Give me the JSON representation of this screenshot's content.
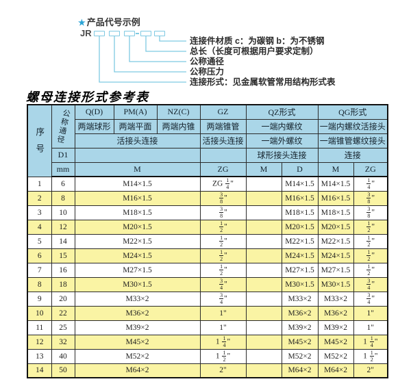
{
  "colors": {
    "accent_blue": "#7ec9e2",
    "star_blue": "#2aa4d6",
    "header_bg": "#aad6e8",
    "row_alt_bg": "#faf4a4",
    "border": "#2a2a2a"
  },
  "diagram": {
    "star": "★",
    "heading": "产品代号示例",
    "code_prefix": "JR",
    "labels": [
      "连接件材质  c：为碳钢  b：为不锈钢",
      "总长（长度可根据用户要求定制）",
      "公称通径",
      "公称压力",
      "连接形式：见金属软管常用结构形式表"
    ]
  },
  "table": {
    "title": "螺母连接形式参考表",
    "header": {
      "col_serial": "序号",
      "col_dn": "公称通径",
      "dn_sub": "D1",
      "dn_unit": "mm",
      "groups": [
        "Q(D)",
        "PM(A)",
        "NZ(C)",
        "GZ",
        "QZ形式",
        "QG形式"
      ],
      "row2": [
        "两端球形",
        "两端平面",
        "两端内锥",
        "两端锥管",
        "一端内螺纹",
        "一端内螺纹活接头"
      ],
      "row3": [
        "活接头连接",
        "活接头连接",
        "一端外螺纹",
        "一端锥管螺纹接头"
      ],
      "row4": [
        "球形接头连接",
        "连接"
      ],
      "units": [
        "M",
        "ZG",
        "M",
        "D",
        "M",
        "ZG"
      ]
    },
    "rows": [
      {
        "no": "1",
        "dn": "6",
        "m": "M14×1.5",
        "gz": "ZG 1/4\"",
        "qz_m": "",
        "qz_d": "M14×1.5",
        "qg_m": "M14×1.5",
        "qg_zg": "1/4\""
      },
      {
        "no": "2",
        "dn": "8",
        "m": "M16×1.5",
        "gz": "3/8\"",
        "qz_m": "",
        "qz_d": "M16×1.5",
        "qg_m": "M16×1.5",
        "qg_zg": "3/8\""
      },
      {
        "no": "3",
        "dn": "10",
        "m": "M18×1.5",
        "gz": "3/8\"",
        "qz_m": "",
        "qz_d": "M18×1.5",
        "qg_m": "M18×1.5",
        "qg_zg": "3/8\""
      },
      {
        "no": "4",
        "dn": "12",
        "m": "M20×1.5",
        "gz": "1/2\"",
        "qz_m": "",
        "qz_d": "M20×1.5",
        "qg_m": "M20×1.5",
        "qg_zg": "1/2\""
      },
      {
        "no": "5",
        "dn": "14",
        "m": "M22×1.5",
        "gz": "1/2\"",
        "qz_m": "",
        "qz_d": "M22×1.5",
        "qg_m": "M22×1.5",
        "qg_zg": "1/2\""
      },
      {
        "no": "6",
        "dn": "15",
        "m": "M24×1.5",
        "gz": "1/2\"",
        "qz_m": "",
        "qz_d": "M24×1.5",
        "qg_m": "M24×1.5",
        "qg_zg": "1/2\""
      },
      {
        "no": "7",
        "dn": "16",
        "m": "M27×1.5",
        "gz": "1/2\"",
        "qz_m": "",
        "qz_d": "M27×1.5",
        "qg_m": "M27×1.5",
        "qg_zg": "1/2\""
      },
      {
        "no": "8",
        "dn": "18",
        "m": "M30×1.5",
        "gz": "3/4\"",
        "qz_m": "",
        "qz_d": "M30×1.5",
        "qg_m": "M30×1.5",
        "qg_zg": "3/4\""
      },
      {
        "no": "9",
        "dn": "20",
        "m": "M33×2",
        "gz": "3/4\"",
        "qz_m": "",
        "qz_d": "M33×2",
        "qg_m": "M33×2",
        "qg_zg": "3/4\""
      },
      {
        "no": "10",
        "dn": "22",
        "m": "M36×2",
        "gz": "1\"",
        "qz_m": "",
        "qz_d": "M36×2",
        "qg_m": "M36×2",
        "qg_zg": "1\""
      },
      {
        "no": "11",
        "dn": "25",
        "m": "M39×2",
        "gz": "1\"",
        "qz_m": "",
        "qz_d": "M39×2",
        "qg_m": "M39×2",
        "qg_zg": "1\""
      },
      {
        "no": "12",
        "dn": "32",
        "m": "M45×2",
        "gz": "1 1/4\"",
        "qz_m": "",
        "qz_d": "M45×2",
        "qg_m": "M45×2",
        "qg_zg": "1 1/4\""
      },
      {
        "no": "13",
        "dn": "40",
        "m": "M52×2",
        "gz": "1 1/2\"",
        "qz_m": "",
        "qz_d": "M52×2",
        "qg_m": "M52×2",
        "qg_zg": "1 1/2\""
      },
      {
        "no": "14",
        "dn": "50",
        "m": "M64×2",
        "gz": "2\"",
        "qz_m": "",
        "qz_d": "M64×2",
        "qg_m": "M64×2",
        "qg_zg": "2\""
      }
    ]
  }
}
